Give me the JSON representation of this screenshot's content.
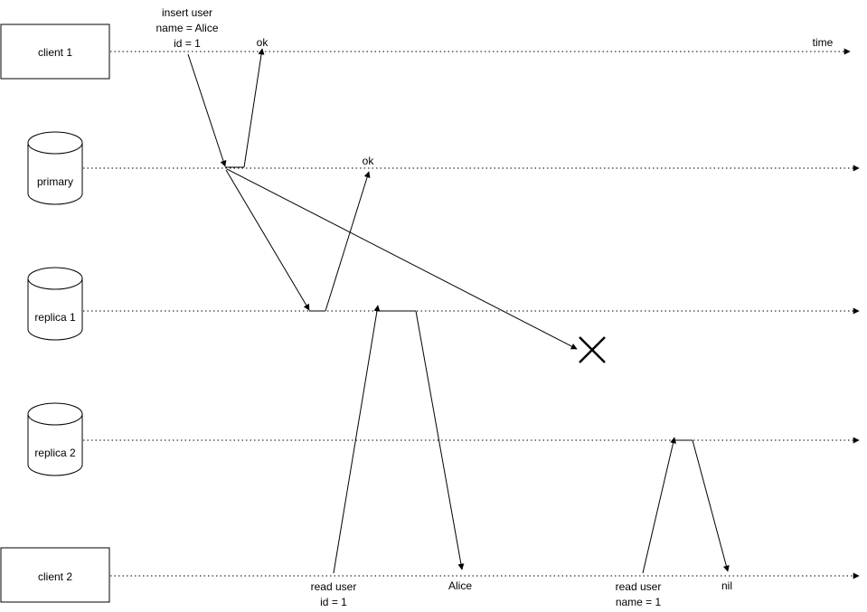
{
  "nodes": {
    "client1": {
      "label": "client 1",
      "shape": "rectangle"
    },
    "primary": {
      "label": "primary",
      "shape": "cylinder"
    },
    "replica1": {
      "label": "replica 1",
      "shape": "cylinder"
    },
    "replica2": {
      "label": "replica 2",
      "shape": "cylinder"
    },
    "client2": {
      "label": "client 2",
      "shape": "rectangle"
    }
  },
  "axis": {
    "time_label": "time"
  },
  "messages": {
    "insert": {
      "line1": "insert user",
      "line2": "name = Alice",
      "line3": "id = 1"
    },
    "ok_client1": "ok",
    "ok_primary": "ok",
    "read1": {
      "line1": "read user",
      "line2": "id = 1"
    },
    "read1_result": "Alice",
    "read2": {
      "line1": "read user",
      "line2": "name = 1"
    },
    "read2_result": "nil"
  },
  "lost_message_marker": "cross-icon"
}
